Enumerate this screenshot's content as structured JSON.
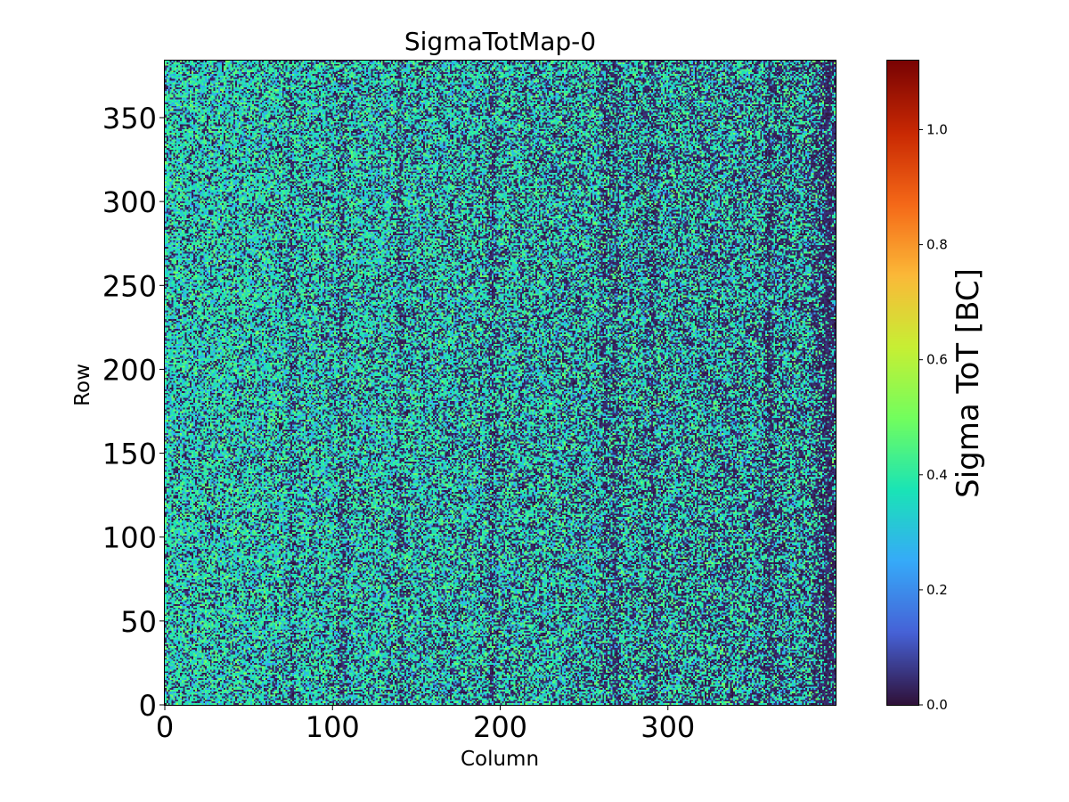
{
  "chart_data": {
    "type": "heatmap",
    "title": "SigmaTotMap-0",
    "xlabel": "Column",
    "ylabel": "Row",
    "xlim": [
      0,
      400
    ],
    "ylim": [
      0,
      384
    ],
    "x_ticks": [
      0,
      100,
      200,
      300
    ],
    "y_ticks": [
      0,
      50,
      100,
      150,
      200,
      250,
      300,
      350
    ],
    "colorbar": {
      "label": "Sigma ToT [BC]",
      "colormap": "turbo",
      "range": [
        0.0,
        1.12
      ],
      "ticks": [
        "0.0",
        "0.2",
        "0.4",
        "0.6",
        "0.8",
        "1.0"
      ],
      "colors": [
        "#30123b",
        "#4662d7",
        "#36aaf9",
        "#1ae4b6",
        "#72fe5e",
        "#c7ef34",
        "#fbb938",
        "#f56918",
        "#c92903",
        "#7a0403"
      ]
    },
    "value_distribution": {
      "typical_values": [
        0.0,
        0.3,
        0.4,
        0.45
      ],
      "dominant": "teal-green (~0.35-0.45) with dark (0.0) pixels",
      "dark_columns": [
        75,
        105,
        140,
        195,
        262,
        268,
        290,
        360,
        395
      ]
    }
  }
}
